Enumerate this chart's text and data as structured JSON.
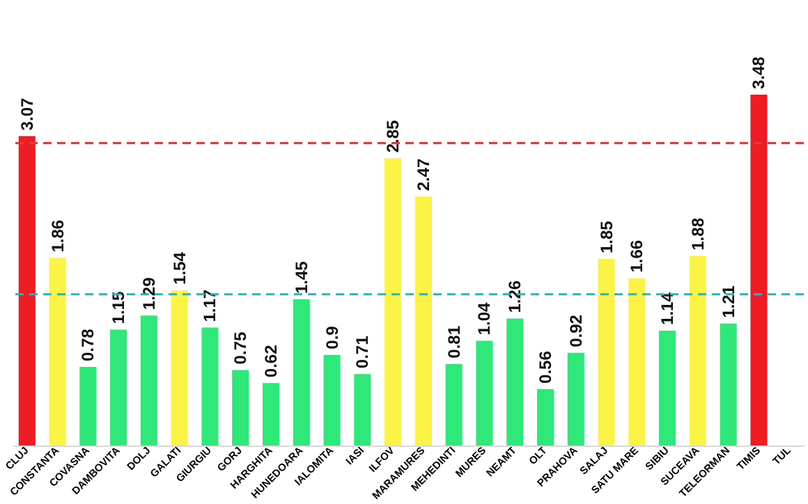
{
  "chart_data": {
    "type": "bar",
    "categories": [
      "CLUJ",
      "CONSTANTA",
      "COVASNA",
      "DAMBOVITA",
      "DOLJ",
      "GALATI",
      "GIURGIU",
      "GORJ",
      "HARGHITA",
      "HUNEDOARA",
      "IALOMITA",
      "IASI",
      "ILFOV",
      "MARAMURES",
      "MEHEDINTI",
      "MURES",
      "NEAMT",
      "OLT",
      "PRAHOVA",
      "SALAJ",
      "SATU MARE",
      "SIBIU",
      "SUCEAVA",
      "TELEORMAN",
      "TIMIS",
      "TUL"
    ],
    "values": [
      3.07,
      1.86,
      0.78,
      1.15,
      1.29,
      1.54,
      1.17,
      0.75,
      0.62,
      1.45,
      0.9,
      0.71,
      2.85,
      2.47,
      0.81,
      1.04,
      1.26,
      0.56,
      0.92,
      1.85,
      1.66,
      1.14,
      1.88,
      1.21,
      3.48,
      null
    ],
    "colors": [
      "#ee1c25",
      "#fbf446",
      "#2ee87a",
      "#2ee87a",
      "#2ee87a",
      "#fbf446",
      "#2ee87a",
      "#2ee87a",
      "#2ee87a",
      "#2ee87a",
      "#2ee87a",
      "#2ee87a",
      "#fbf446",
      "#fbf446",
      "#2ee87a",
      "#2ee87a",
      "#2ee87a",
      "#2ee87a",
      "#2ee87a",
      "#fbf446",
      "#fbf446",
      "#2ee87a",
      "#fbf446",
      "#2ee87a",
      "#ee1c25",
      null
    ],
    "data_labels": true,
    "ref_lines": [
      {
        "axis": "y",
        "value": 3.0,
        "color": "#e03a3a",
        "line_style": "dashed"
      },
      {
        "axis": "y",
        "value": 1.5,
        "color": "#22b4c4",
        "line_style": "dashed"
      }
    ]
  }
}
